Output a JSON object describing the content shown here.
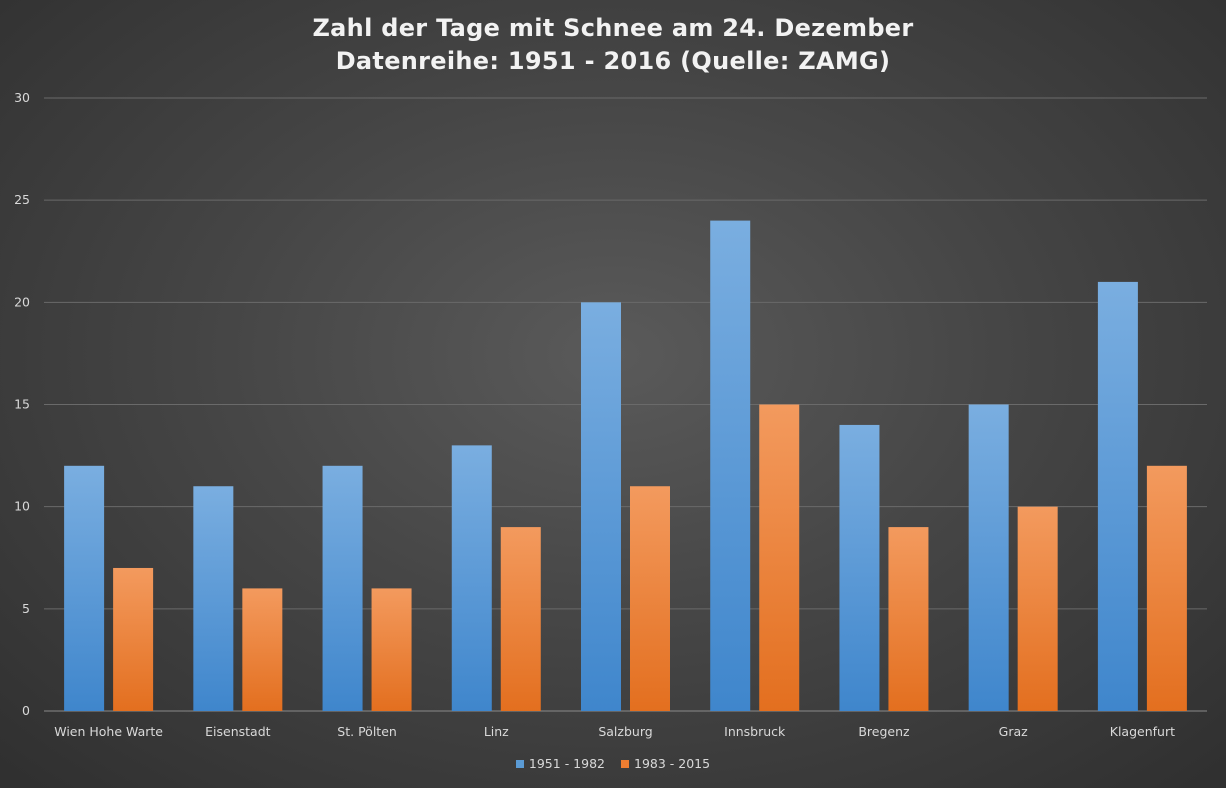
{
  "chart_data": {
    "type": "bar",
    "title": [
      "Zahl der Tage mit Schnee am 24. Dezember",
      "Datenreihe: 1951 - 2016 (Quelle: ZAMG)"
    ],
    "xlabel": "",
    "ylabel": "",
    "ylim": [
      0,
      30
    ],
    "yticks": [
      0,
      5,
      10,
      15,
      20,
      25,
      30
    ],
    "grid": true,
    "legend_position": "bottom",
    "categories": [
      "Wien Hohe Warte",
      "Eisenstadt",
      "St. Pölten",
      "Linz",
      "Salzburg",
      "Innsbruck",
      "Bregenz",
      "Graz",
      "Klagenfurt"
    ],
    "series": [
      {
        "name": "1951 - 1982",
        "color": "#5b9bd5",
        "values": [
          12,
          11,
          12,
          13,
          20,
          24,
          14,
          15,
          21
        ]
      },
      {
        "name": "1983 - 2015",
        "color": "#ed7d31",
        "values": [
          7,
          6,
          6,
          9,
          11,
          15,
          9,
          10,
          12
        ]
      }
    ]
  }
}
